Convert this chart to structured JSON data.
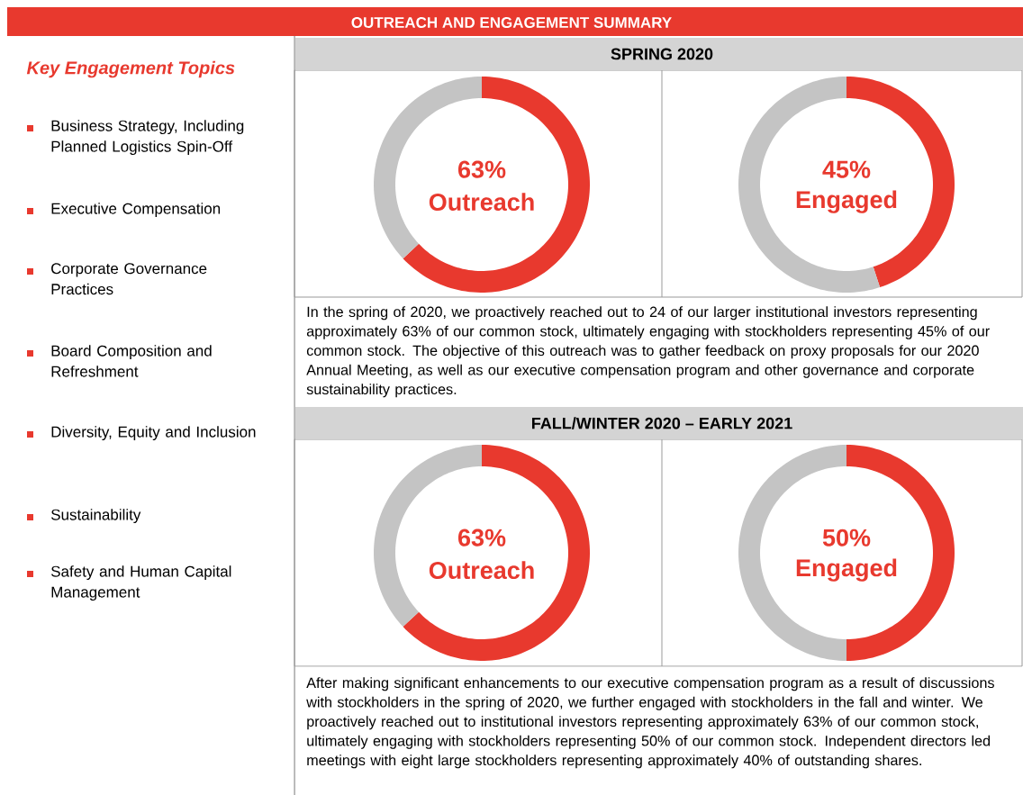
{
  "chart_data": [
    {
      "type": "other",
      "title": "OUTREACH AND ENGAGEMENT SUMMARY",
      "subtitle": "Key Engagement Topics",
      "annotations": [
        "Business Strategy, Including Planned Logistics Spin-Off",
        "Executive Compensation",
        "Corporate Governance Practices",
        "Board Composition and Refreshment",
        "Diversity, Equity and Inclusion",
        "Sustainability",
        "Safety and Human Capital Management"
      ]
    },
    {
      "type": "donut",
      "title": "SPRING 2020",
      "categories": [
        "Outreach",
        null
      ],
      "values": [
        63,
        37
      ],
      "colors": [
        "#e8392e",
        "#c4c4c4"
      ],
      "value_labels": [
        "63%",
        null
      ]
    },
    {
      "type": "donut",
      "categories": [
        "Engaged",
        null
      ],
      "values": [
        45,
        55
      ],
      "colors": [
        "#e8392e",
        "#c4c4c4"
      ],
      "value_labels": [
        "45%",
        null
      ],
      "annotations": [
        "In the spring of 2020, we proactively reached out to 24 of our larger institutional investors representing approximately 63% of our common stock, ultimately engaging with stockholders representing 45% of our common stock. The objective of this outreach was to gather feedback on proxy proposals for our 2020 Annual Meeting, as well as our executive compensation program and other governance and corporate sustainability practices."
      ]
    },
    {
      "type": "donut",
      "title": "FALL/WINTER 2020 – EARLY 2021",
      "categories": [
        "Outreach",
        null
      ],
      "values": [
        63,
        37
      ],
      "colors": [
        "#e8392e",
        "#c4c4c4"
      ],
      "value_labels": [
        "63%",
        null
      ]
    },
    {
      "type": "donut",
      "categories": [
        "Engaged",
        null
      ],
      "values": [
        50,
        50
      ],
      "colors": [
        "#e8392e",
        "#c4c4c4"
      ],
      "value_labels": [
        "50%",
        null
      ],
      "annotations": [
        "After making significant enhancements to our executive compensation program as a result of discussions with stockholders in the spring of 2020, we further engaged with stockholders in the fall and winter. We proactively reached out to institutional investors representing approximately 63% of our common stock, ultimately engaging with stockholders representing 50% of our common stock. Independent directors led meetings with eight large stockholders representing approximately 40% of outstanding shares."
      ]
    }
  ]
}
